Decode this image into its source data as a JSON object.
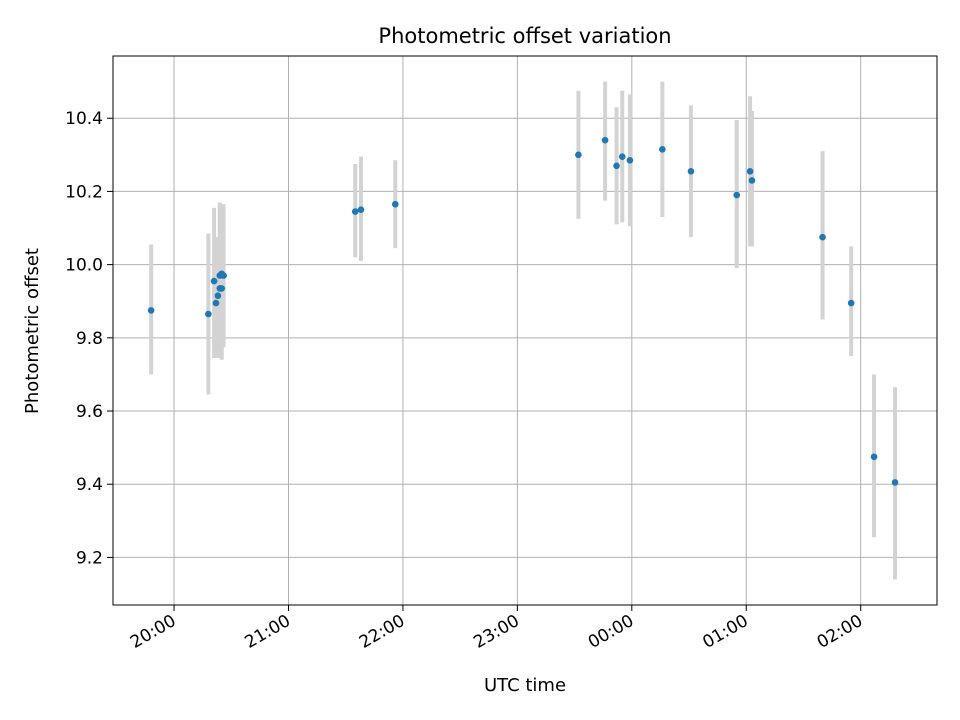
{
  "chart_data": {
    "type": "scatter",
    "title": "Photometric offset variation",
    "xlabel": "UTC time",
    "ylabel": "Photometric offset",
    "x_type": "time",
    "x_range": [
      "19:28",
      "02:40"
    ],
    "ylim": [
      9.07,
      10.57
    ],
    "x_ticks": [
      "20:00",
      "21:00",
      "22:00",
      "23:00",
      "00:00",
      "01:00",
      "02:00"
    ],
    "y_ticks": [
      9.2,
      9.4,
      9.6,
      9.8,
      10.0,
      10.2,
      10.4
    ],
    "grid": true,
    "marker_color": "#1f77b4",
    "errorbar_color": "#d3d3d3",
    "points": [
      {
        "x": "19:48",
        "y": 9.875,
        "lo": 9.7,
        "hi": 10.055
      },
      {
        "x": "20:18",
        "y": 9.865,
        "lo": 9.645,
        "hi": 10.085
      },
      {
        "x": "20:21",
        "y": 9.955,
        "lo": 9.745,
        "hi": 10.155
      },
      {
        "x": "20:22",
        "y": 9.895,
        "lo": 9.745,
        "hi": 10.045
      },
      {
        "x": "20:23",
        "y": 9.915,
        "lo": 9.755,
        "hi": 10.075
      },
      {
        "x": "20:24",
        "y": 9.935,
        "lo": 9.745,
        "hi": 10.165
      },
      {
        "x": "20:24",
        "y": 9.97,
        "lo": 9.76,
        "hi": 10.17
      },
      {
        "x": "20:25",
        "y": 9.975,
        "lo": 9.755,
        "hi": 10.165
      },
      {
        "x": "20:25",
        "y": 9.935,
        "lo": 9.74,
        "hi": 10.12
      },
      {
        "x": "20:26",
        "y": 9.97,
        "lo": 9.775,
        "hi": 10.165
      },
      {
        "x": "21:35",
        "y": 10.145,
        "lo": 10.02,
        "hi": 10.275
      },
      {
        "x": "21:38",
        "y": 10.15,
        "lo": 10.01,
        "hi": 10.295
      },
      {
        "x": "21:56",
        "y": 10.165,
        "lo": 10.045,
        "hi": 10.285
      },
      {
        "x": "23:32",
        "y": 10.3,
        "lo": 10.125,
        "hi": 10.475
      },
      {
        "x": "23:46",
        "y": 10.34,
        "lo": 10.175,
        "hi": 10.5
      },
      {
        "x": "23:52",
        "y": 10.27,
        "lo": 10.11,
        "hi": 10.43
      },
      {
        "x": "23:55",
        "y": 10.295,
        "lo": 10.115,
        "hi": 10.475
      },
      {
        "x": "23:59",
        "y": 10.285,
        "lo": 10.105,
        "hi": 10.465
      },
      {
        "x": "00:16",
        "y": 10.315,
        "lo": 10.13,
        "hi": 10.5
      },
      {
        "x": "00:31",
        "y": 10.255,
        "lo": 10.075,
        "hi": 10.435
      },
      {
        "x": "00:55",
        "y": 10.19,
        "lo": 9.99,
        "hi": 10.395
      },
      {
        "x": "01:02",
        "y": 10.255,
        "lo": 10.05,
        "hi": 10.46
      },
      {
        "x": "01:03",
        "y": 10.23,
        "lo": 10.05,
        "hi": 10.42
      },
      {
        "x": "01:40",
        "y": 10.075,
        "lo": 9.85,
        "hi": 10.31
      },
      {
        "x": "01:55",
        "y": 9.895,
        "lo": 9.75,
        "hi": 10.05
      },
      {
        "x": "02:07",
        "y": 9.475,
        "lo": 9.255,
        "hi": 9.7
      },
      {
        "x": "02:18",
        "y": 9.405,
        "lo": 9.14,
        "hi": 9.665
      }
    ]
  }
}
